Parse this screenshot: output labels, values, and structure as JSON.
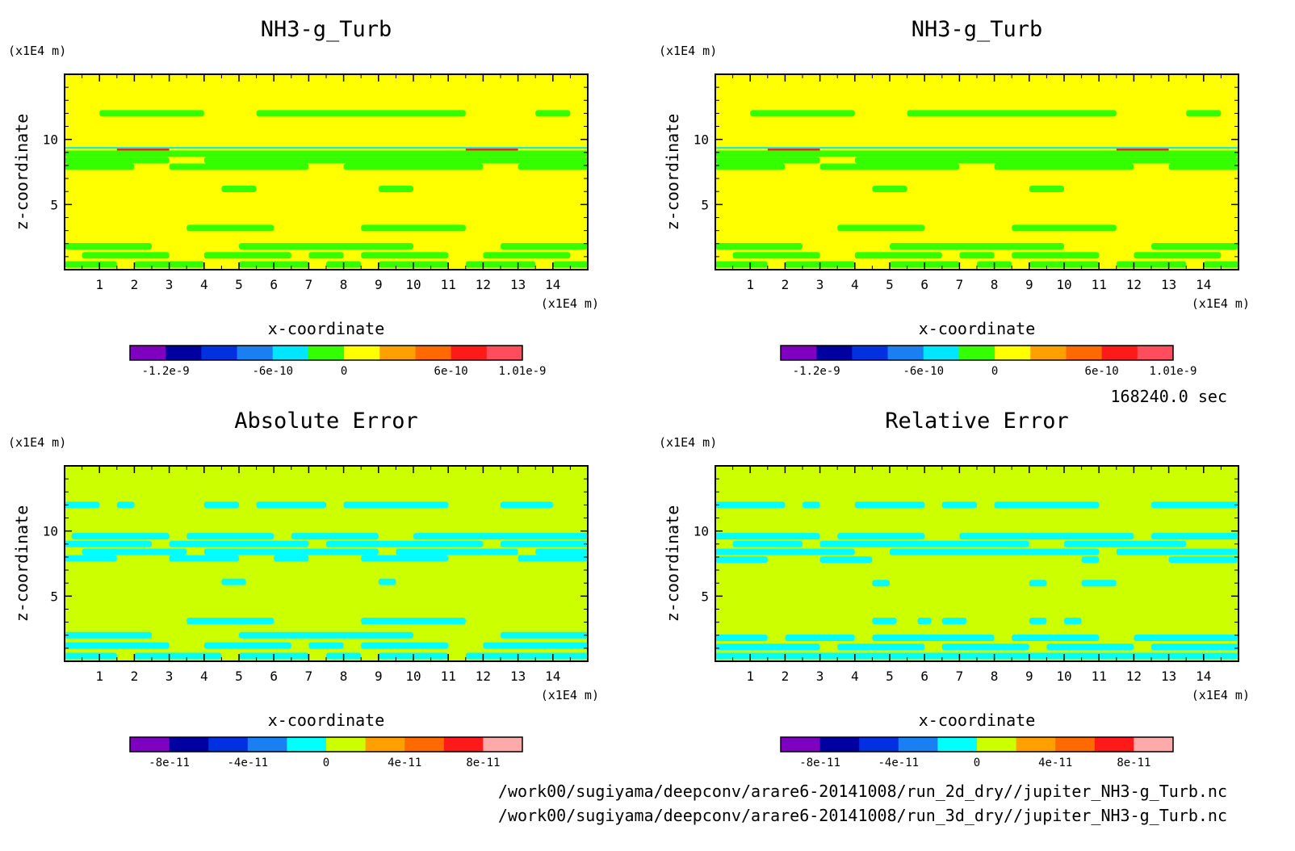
{
  "footer": {
    "time": "168240.0 sec",
    "file1": "/work00/sugiyama/deepconv/arare6-20141008/run_2d_dry//jupiter_NH3-g_Turb.nc",
    "file2": "/work00/sugiyama/deepconv/arare6-20141008/run_3d_dry//jupiter_NH3-g_Turb.nc"
  },
  "chart_data": [
    {
      "type": "heatmap",
      "title": "NH3-g_Turb",
      "xlabel": "x-coordinate",
      "ylabel": "z-coordinate",
      "x_unit": "(x1E4 m)",
      "y_unit": "(x1E4 m)",
      "xlim": [
        0,
        15
      ],
      "ylim": [
        0,
        15
      ],
      "x_ticks": [
        "1",
        "2",
        "3",
        "4",
        "5",
        "6",
        "7",
        "8",
        "9",
        "10",
        "11",
        "12",
        "13",
        "14"
      ],
      "y_ticks": [
        "5",
        "10"
      ],
      "background": "#ffff00",
      "colorbar": {
        "colors": [
          "#8000c0",
          "#0000a0",
          "#0030e0",
          "#1a7ff0",
          "#00e6ff",
          "#33ff00",
          "#ffff00",
          "#ffa000",
          "#ff6a00",
          "#ff1a1a",
          "#ff4d5e"
        ],
        "labels": [
          "-1.2e-9",
          "-6e-10",
          "0",
          "6e-10",
          "1.01e-9"
        ]
      },
      "features": [
        {
          "z": 12.0,
          "color": "#33ff00",
          "segments": [
            [
              1,
              4
            ],
            [
              5.5,
              11.5
            ],
            [
              13.5,
              14.5
            ]
          ]
        },
        {
          "z": 9.35,
          "color": "#00e6ff",
          "segments": [
            [
              0,
              15
            ]
          ]
        },
        {
          "z": 9.2,
          "color": "#ff1a1a",
          "segments": [
            [
              1.5,
              3
            ],
            [
              11.5,
              13
            ]
          ]
        },
        {
          "z": 9.05,
          "color": "#0030e0",
          "segments": [
            [
              2,
              3.5
            ],
            [
              11,
              12.5
            ]
          ]
        },
        {
          "z": 8.9,
          "color": "#33ff00",
          "segments": [
            [
              0,
              15
            ]
          ]
        },
        {
          "z": 8.4,
          "color": "#33ff00",
          "segments": [
            [
              0,
              3
            ],
            [
              4,
              15
            ]
          ]
        },
        {
          "z": 7.9,
          "color": "#33ff00",
          "segments": [
            [
              0,
              2
            ],
            [
              3,
              7
            ],
            [
              8,
              12
            ],
            [
              13,
              15
            ]
          ]
        },
        {
          "z": 6.2,
          "color": "#33ff00",
          "segments": [
            [
              4.5,
              5.5
            ],
            [
              9,
              10
            ]
          ]
        },
        {
          "z": 3.2,
          "color": "#33ff00",
          "segments": [
            [
              3.5,
              6
            ],
            [
              8.5,
              11.5
            ]
          ]
        },
        {
          "z": 1.8,
          "color": "#33ff00",
          "segments": [
            [
              0,
              2.5
            ],
            [
              5,
              10
            ],
            [
              12.5,
              15
            ]
          ]
        },
        {
          "z": 1.1,
          "color": "#33ff00",
          "segments": [
            [
              0.5,
              3
            ],
            [
              4,
              6.5
            ],
            [
              7,
              8
            ],
            [
              8.5,
              11
            ],
            [
              12,
              14.5
            ]
          ]
        },
        {
          "z": 0.4,
          "color": "#33ff00",
          "segments": [
            [
              0,
              1.5
            ],
            [
              2,
              4
            ],
            [
              5,
              7
            ],
            [
              7.5,
              8.5
            ],
            [
              9,
              11
            ],
            [
              11.5,
              13.5
            ],
            [
              14,
              15
            ]
          ]
        }
      ]
    },
    {
      "type": "heatmap",
      "title": "NH3-g_Turb",
      "xlabel": "x-coordinate",
      "ylabel": "z-coordinate",
      "x_unit": "(x1E4 m)",
      "y_unit": "(x1E4 m)",
      "xlim": [
        0,
        15
      ],
      "ylim": [
        0,
        15
      ],
      "x_ticks": [
        "1",
        "2",
        "3",
        "4",
        "5",
        "6",
        "7",
        "8",
        "9",
        "10",
        "11",
        "12",
        "13",
        "14"
      ],
      "y_ticks": [
        "5",
        "10"
      ],
      "background": "#ffff00",
      "colorbar": {
        "colors": [
          "#8000c0",
          "#0000a0",
          "#0030e0",
          "#1a7ff0",
          "#00e6ff",
          "#33ff00",
          "#ffff00",
          "#ffa000",
          "#ff6a00",
          "#ff1a1a",
          "#ff4d5e"
        ],
        "labels": [
          "-1.2e-9",
          "-6e-10",
          "0",
          "6e-10",
          "1.01e-9"
        ]
      },
      "features": [
        {
          "z": 12.0,
          "color": "#33ff00",
          "segments": [
            [
              1,
              4
            ],
            [
              5.5,
              11.5
            ],
            [
              13.5,
              14.5
            ]
          ]
        },
        {
          "z": 9.35,
          "color": "#00e6ff",
          "segments": [
            [
              0,
              15
            ]
          ]
        },
        {
          "z": 9.2,
          "color": "#ff1a1a",
          "segments": [
            [
              1.5,
              3
            ],
            [
              11.5,
              13
            ]
          ]
        },
        {
          "z": 9.05,
          "color": "#0030e0",
          "segments": [
            [
              2,
              3.5
            ],
            [
              11,
              12.5
            ]
          ]
        },
        {
          "z": 8.9,
          "color": "#33ff00",
          "segments": [
            [
              0,
              15
            ]
          ]
        },
        {
          "z": 8.4,
          "color": "#33ff00",
          "segments": [
            [
              0,
              3
            ],
            [
              4,
              15
            ]
          ]
        },
        {
          "z": 7.9,
          "color": "#33ff00",
          "segments": [
            [
              0,
              2
            ],
            [
              3,
              7
            ],
            [
              8,
              12
            ],
            [
              13,
              15
            ]
          ]
        },
        {
          "z": 6.2,
          "color": "#33ff00",
          "segments": [
            [
              4.5,
              5.5
            ],
            [
              9,
              10
            ]
          ]
        },
        {
          "z": 3.2,
          "color": "#33ff00",
          "segments": [
            [
              3.5,
              6
            ],
            [
              8.5,
              11.5
            ]
          ]
        },
        {
          "z": 1.8,
          "color": "#33ff00",
          "segments": [
            [
              0,
              2.5
            ],
            [
              5,
              10
            ],
            [
              12.5,
              15
            ]
          ]
        },
        {
          "z": 1.1,
          "color": "#33ff00",
          "segments": [
            [
              0.5,
              3
            ],
            [
              4,
              6.5
            ],
            [
              7,
              8
            ],
            [
              8.5,
              11
            ],
            [
              12,
              14.5
            ]
          ]
        },
        {
          "z": 0.4,
          "color": "#33ff00",
          "segments": [
            [
              0,
              1.5
            ],
            [
              2,
              4
            ],
            [
              5,
              7
            ],
            [
              7.5,
              8.5
            ],
            [
              9,
              11
            ],
            [
              11.5,
              13.5
            ],
            [
              14,
              15
            ]
          ]
        }
      ]
    },
    {
      "type": "heatmap",
      "title": "Absolute Error",
      "xlabel": "x-coordinate",
      "ylabel": "z-coordinate",
      "x_unit": "(x1E4 m)",
      "y_unit": "(x1E4 m)",
      "xlim": [
        0,
        15
      ],
      "ylim": [
        0,
        15
      ],
      "x_ticks": [
        "1",
        "2",
        "3",
        "4",
        "5",
        "6",
        "7",
        "8",
        "9",
        "10",
        "11",
        "12",
        "13",
        "14"
      ],
      "y_ticks": [
        "5",
        "10"
      ],
      "background": "#ccff00",
      "colorbar": {
        "colors": [
          "#8000c0",
          "#0000a0",
          "#0030e0",
          "#1a7ff0",
          "#00ffff",
          "#ccff00",
          "#ffa000",
          "#ff6a00",
          "#ff1a1a",
          "#ffaaaa"
        ],
        "labels": [
          "-8e-11",
          "-4e-11",
          "0",
          "4e-11",
          "8e-11"
        ]
      },
      "features": [
        {
          "z": 12.0,
          "color": "#00ffff",
          "segments": [
            [
              0,
              1
            ],
            [
              1.5,
              2
            ],
            [
              4,
              5
            ],
            [
              5.5,
              7.5
            ],
            [
              8,
              11
            ],
            [
              12.5,
              14
            ]
          ]
        },
        {
          "z": 9.6,
          "color": "#00ffff",
          "segments": [
            [
              0.2,
              3
            ],
            [
              3.5,
              6
            ],
            [
              6.5,
              9
            ],
            [
              10,
              15
            ]
          ]
        },
        {
          "z": 9.0,
          "color": "#00ffff",
          "segments": [
            [
              0,
              2.5
            ],
            [
              3,
              7
            ],
            [
              7.5,
              12
            ],
            [
              12.5,
              15
            ]
          ]
        },
        {
          "z": 8.4,
          "color": "#00ffff",
          "segments": [
            [
              0.5,
              3.5
            ],
            [
              4,
              9
            ],
            [
              9.5,
              13
            ],
            [
              13.5,
              15
            ]
          ]
        },
        {
          "z": 7.9,
          "color": "#00ffff",
          "segments": [
            [
              0,
              1.5
            ],
            [
              3,
              5
            ],
            [
              6,
              7
            ],
            [
              8.5,
              11
            ],
            [
              13,
              15
            ]
          ]
        },
        {
          "z": 6.1,
          "color": "#00ffff",
          "segments": [
            [
              4.5,
              5.2
            ],
            [
              9,
              9.5
            ]
          ]
        },
        {
          "z": 3.1,
          "color": "#00ffff",
          "segments": [
            [
              3.5,
              6
            ],
            [
              8.5,
              11.5
            ]
          ]
        },
        {
          "z": 2.0,
          "color": "#00ffff",
          "segments": [
            [
              0,
              2.5
            ],
            [
              5,
              10
            ],
            [
              12.5,
              15
            ]
          ]
        },
        {
          "z": 1.2,
          "color": "#00ffff",
          "segments": [
            [
              0,
              3
            ],
            [
              4,
              6.5
            ],
            [
              7,
              8
            ],
            [
              8.5,
              11
            ],
            [
              12,
              15
            ]
          ]
        },
        {
          "z": 0.4,
          "color": "#00ffff",
          "segments": [
            [
              0,
              1.5
            ],
            [
              2,
              4.5
            ],
            [
              5,
              7
            ],
            [
              7.5,
              8.5
            ],
            [
              9,
              11
            ],
            [
              11.5,
              15
            ]
          ]
        }
      ]
    },
    {
      "type": "heatmap",
      "title": "Relative Error",
      "xlabel": "x-coordinate",
      "ylabel": "z-coordinate",
      "x_unit": "(x1E4 m)",
      "y_unit": "(x1E4 m)",
      "xlim": [
        0,
        15
      ],
      "ylim": [
        0,
        15
      ],
      "x_ticks": [
        "1",
        "2",
        "3",
        "4",
        "5",
        "6",
        "7",
        "8",
        "9",
        "10",
        "11",
        "12",
        "13",
        "14"
      ],
      "y_ticks": [
        "5",
        "10"
      ],
      "background": "#ccff00",
      "colorbar": {
        "colors": [
          "#8000c0",
          "#0000a0",
          "#0030e0",
          "#1a7ff0",
          "#00ffff",
          "#ccff00",
          "#ffa000",
          "#ff6a00",
          "#ff1a1a",
          "#ffaaaa"
        ],
        "labels": [
          "-8e-11",
          "-4e-11",
          "0",
          "4e-11",
          "8e-11"
        ]
      },
      "features": [
        {
          "z": 12.0,
          "color": "#00ffff",
          "segments": [
            [
              0,
              2
            ],
            [
              2.5,
              3
            ],
            [
              4,
              6
            ],
            [
              6.5,
              7.5
            ],
            [
              8,
              11
            ],
            [
              12.5,
              15
            ]
          ]
        },
        {
          "z": 9.6,
          "color": "#00ffff",
          "segments": [
            [
              0,
              3
            ],
            [
              3.5,
              6
            ],
            [
              7,
              12
            ],
            [
              12.5,
              15
            ]
          ]
        },
        {
          "z": 9.0,
          "color": "#00ffff",
          "segments": [
            [
              0.5,
              2.5
            ],
            [
              3,
              9
            ],
            [
              10,
              13.5
            ]
          ]
        },
        {
          "z": 8.4,
          "color": "#00ffff",
          "segments": [
            [
              0,
              4
            ],
            [
              5,
              11
            ],
            [
              11.5,
              15
            ]
          ]
        },
        {
          "z": 7.8,
          "color": "#00ffff",
          "segments": [
            [
              0,
              1.5
            ],
            [
              3,
              4.5
            ],
            [
              10.5,
              11
            ],
            [
              13,
              15
            ]
          ]
        },
        {
          "z": 6.0,
          "color": "#00ffff",
          "segments": [
            [
              4.5,
              5
            ],
            [
              9,
              9.5
            ],
            [
              10.5,
              11.5
            ]
          ]
        },
        {
          "z": 3.1,
          "color": "#00ffff",
          "segments": [
            [
              4.5,
              5.2
            ],
            [
              5.8,
              6.2
            ],
            [
              6.5,
              7.2
            ],
            [
              9,
              9.5
            ],
            [
              10,
              10.5
            ]
          ]
        },
        {
          "z": 1.8,
          "color": "#00ffff",
          "segments": [
            [
              0,
              1.5
            ],
            [
              2,
              4
            ],
            [
              4.5,
              8
            ],
            [
              8.5,
              11
            ],
            [
              12,
              15
            ]
          ]
        },
        {
          "z": 1.1,
          "color": "#00ffff",
          "segments": [
            [
              0,
              3
            ],
            [
              3.5,
              6
            ],
            [
              6.5,
              9
            ],
            [
              9.5,
              12
            ],
            [
              12.5,
              15
            ]
          ]
        },
        {
          "z": 0.4,
          "color": "#00ffff",
          "segments": [
            [
              0,
              15
            ]
          ]
        }
      ]
    }
  ]
}
